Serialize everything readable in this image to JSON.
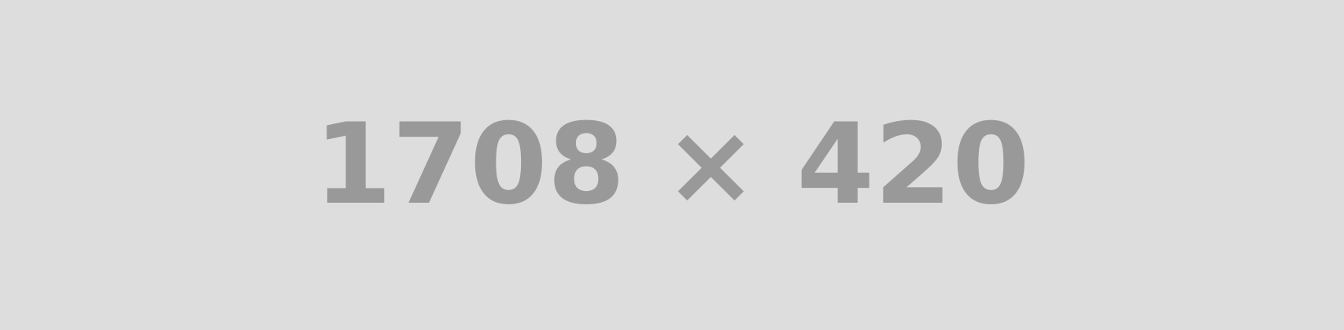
{
  "placeholder": {
    "dimensions_label": "1708 × 420"
  },
  "colors": {
    "background": "#dddddd",
    "text": "#999999"
  }
}
